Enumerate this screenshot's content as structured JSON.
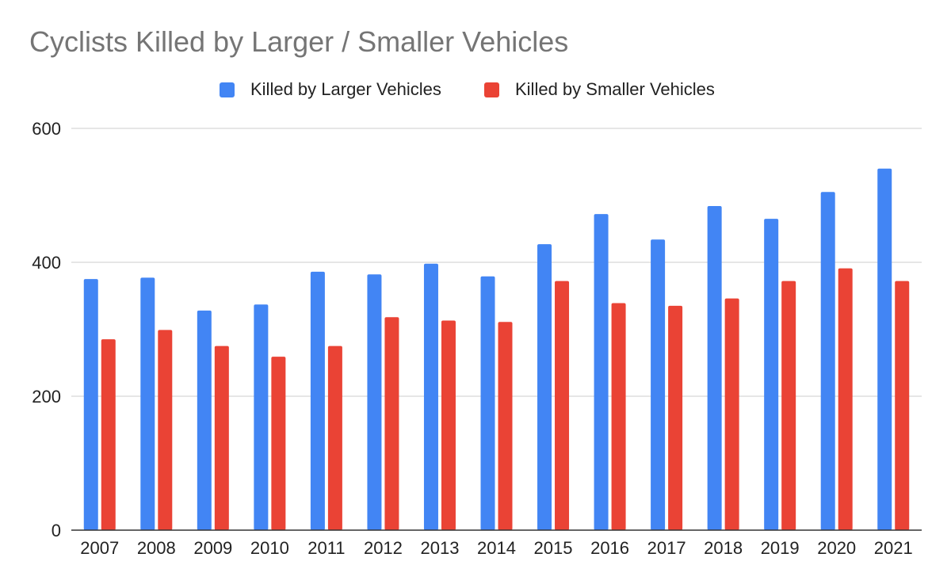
{
  "chart_data": {
    "type": "bar",
    "title": "Cyclists Killed by Larger / Smaller Vehicles",
    "xlabel": "",
    "ylabel": "",
    "ylim": [
      0,
      600
    ],
    "yticks": [
      "0",
      "200",
      "400",
      "600"
    ],
    "grid": true,
    "legend_position": "top",
    "categories": [
      "2007",
      "2008",
      "2009",
      "2010",
      "2011",
      "2012",
      "2013",
      "2014",
      "2015",
      "2016",
      "2017",
      "2018",
      "2019",
      "2020",
      "2021"
    ],
    "series": [
      {
        "name": "Killed by Larger Vehicles",
        "color": "#4285F4",
        "values": [
          375,
          377,
          328,
          337,
          386,
          382,
          398,
          379,
          427,
          472,
          434,
          484,
          465,
          505,
          540
        ]
      },
      {
        "name": "Killed by Smaller Vehicles",
        "color": "#EA4335",
        "values": [
          285,
          299,
          275,
          259,
          275,
          318,
          313,
          311,
          372,
          339,
          335,
          346,
          372,
          391,
          372
        ]
      }
    ]
  }
}
